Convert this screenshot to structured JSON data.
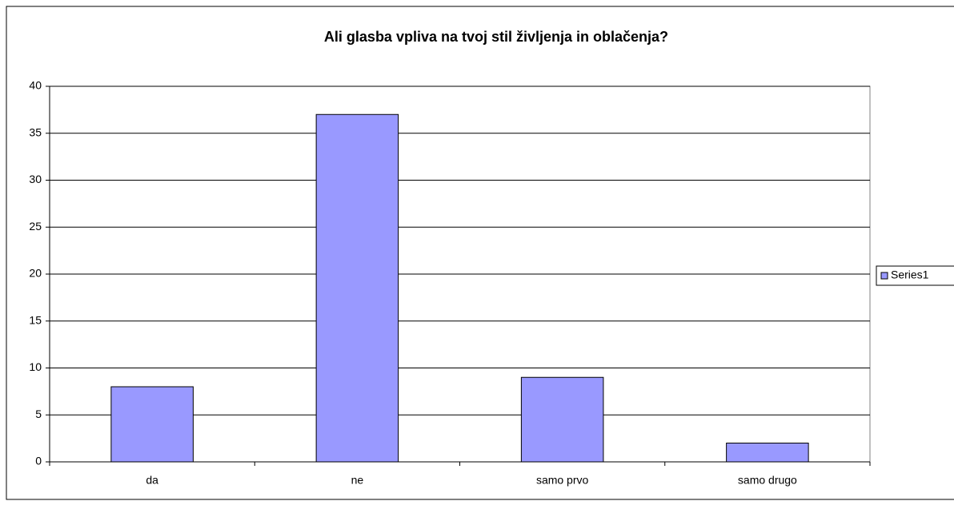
{
  "chart_data": {
    "type": "bar",
    "title": "Ali glasba vpliva na tvoj stil življenja in oblačenja?",
    "categories": [
      "da",
      "ne",
      "samo prvo",
      "samo drugo"
    ],
    "series": [
      {
        "name": "Series1",
        "color": "#9999ff",
        "values": [
          8,
          37,
          9,
          2
        ]
      }
    ],
    "ylim": [
      0,
      40
    ],
    "yticks": [
      0,
      5,
      10,
      15,
      20,
      25,
      30,
      35,
      40
    ],
    "grid": true,
    "legend": "right"
  }
}
